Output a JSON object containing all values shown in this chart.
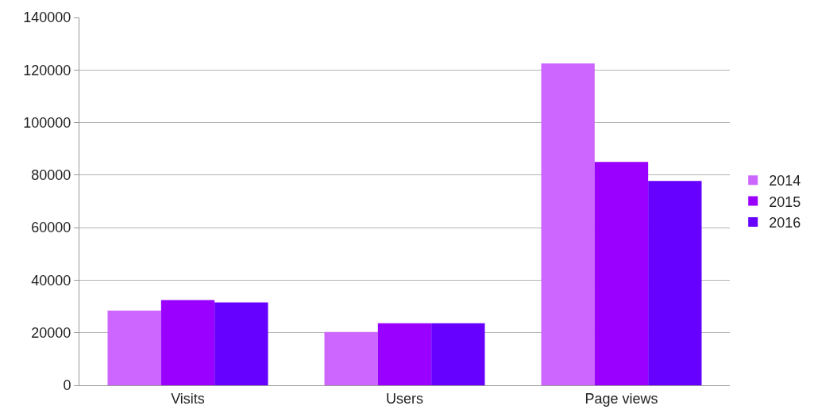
{
  "chart_data": {
    "type": "bar",
    "categories": [
      "Visits",
      "Users",
      "Page views"
    ],
    "series": [
      {
        "name": "2014",
        "color": "#cc66ff",
        "values": [
          28400,
          20300,
          122500
        ]
      },
      {
        "name": "2015",
        "color": "#9900ff",
        "values": [
          32400,
          23600,
          85000
        ]
      },
      {
        "name": "2016",
        "color": "#6600ff",
        "values": [
          31500,
          23600,
          77800
        ]
      }
    ],
    "ylim": [
      0,
      140000
    ],
    "yticks": [
      0,
      20000,
      40000,
      60000,
      80000,
      100000,
      120000,
      140000
    ],
    "grid": "y",
    "legend": "right"
  }
}
